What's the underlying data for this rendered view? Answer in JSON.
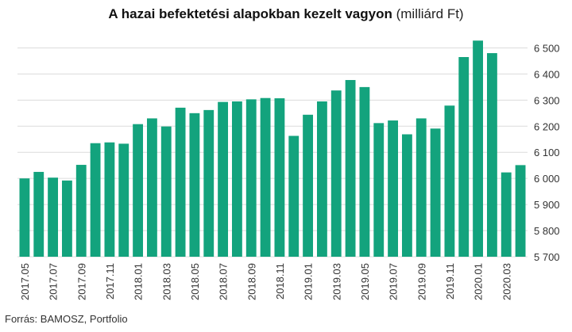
{
  "chart_data": {
    "type": "bar",
    "title": "A hazai befektetési alapokban kezelt vagyon",
    "title_unit": "(milliárd Ft)",
    "xlabel": "",
    "ylabel": "",
    "ylim": [
      5700,
      6550
    ],
    "y_ticks": [
      5700,
      5800,
      5900,
      6000,
      6100,
      6200,
      6300,
      6400,
      6500
    ],
    "y_tick_labels": [
      "5 700",
      "5 800",
      "5 900",
      "6 000",
      "6 100",
      "6 200",
      "6 300",
      "6 400",
      "6 500"
    ],
    "y_axis_position": "right",
    "grid": true,
    "bar_color": "#13a37d",
    "categories": [
      "2017.05",
      "2017.06",
      "2017.07",
      "2017.08",
      "2017.09",
      "2017.10",
      "2017.11",
      "2017.12",
      "2018.01",
      "2018.02",
      "2018.03",
      "2018.04",
      "2018.05",
      "2018.06",
      "2018.07",
      "2018.08",
      "2018.09",
      "2018.10",
      "2018.11",
      "2018.12",
      "2019.01",
      "2019.02",
      "2019.03",
      "2019.04",
      "2019.05",
      "2019.06",
      "2019.07",
      "2019.08",
      "2019.09",
      "2019.10",
      "2019.11",
      "2019.12",
      "2020.01",
      "2020.02",
      "2020.03",
      "2020.04"
    ],
    "x_tick_labels": [
      "2017.05",
      "2017.07",
      "2017.09",
      "2017.11",
      "2018.01",
      "2018.03",
      "2018.05",
      "2018.07",
      "2018.09",
      "2018.11",
      "2019.01",
      "2019.03",
      "2019.05",
      "2019.07",
      "2019.09",
      "2019.11",
      "2020.01",
      "2020.03"
    ],
    "values": [
      6000,
      6025,
      6003,
      5992,
      6052,
      6135,
      6138,
      6133,
      6208,
      6230,
      6199,
      6271,
      6250,
      6262,
      6293,
      6295,
      6303,
      6308,
      6307,
      6163,
      6244,
      6295,
      6337,
      6377,
      6350,
      6212,
      6222,
      6169,
      6230,
      6191,
      6279,
      6465,
      6528,
      6480,
      6023,
      6051
    ]
  },
  "source": "Forrás: BAMOSZ, Portfolio"
}
